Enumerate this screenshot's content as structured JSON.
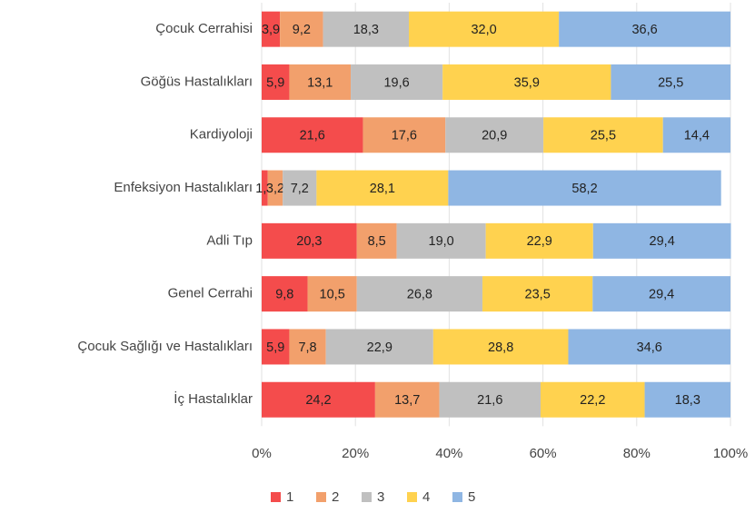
{
  "chart_data": {
    "type": "stacked_barh",
    "categories": [
      "Çocuk Cerrahisi",
      "Göğüs Hastalıkları",
      "Kardiyoloji",
      "Enfeksiyon Hastalıkları",
      "Adli Tıp",
      "Genel Cerrahi",
      "Çocuk Sağlığı ve Hastalıkları",
      "İç Hastalıklar"
    ],
    "series": [
      {
        "name": "1",
        "color": "#f44c4c",
        "values": [
          3.9,
          5.9,
          21.6,
          1.3,
          20.3,
          9.8,
          5.9,
          24.2
        ],
        "value_labels": [
          "3,9",
          "5,9",
          "21,6",
          "1,3",
          "20,3",
          "9,8",
          "5,9",
          "24,2"
        ]
      },
      {
        "name": "2",
        "color": "#f2a06c",
        "values": [
          9.2,
          13.1,
          17.6,
          3.2,
          8.5,
          10.5,
          7.8,
          13.7
        ],
        "value_labels": [
          "9,2",
          "13,1",
          "17,6",
          "3,2",
          "8,5",
          "10,5",
          "7,8",
          "13,7"
        ]
      },
      {
        "name": "3",
        "color": "#c0c0c0",
        "values": [
          18.3,
          19.6,
          20.9,
          7.2,
          19.0,
          26.8,
          22.9,
          21.6
        ],
        "value_labels": [
          "18,3",
          "19,6",
          "20,9",
          "7,2",
          "19,0",
          "26,8",
          "22,9",
          "21,6"
        ]
      },
      {
        "name": "4",
        "color": "#ffd24f",
        "values": [
          32.0,
          35.9,
          25.5,
          28.1,
          22.9,
          23.5,
          28.8,
          22.2
        ],
        "value_labels": [
          "32,0",
          "35,9",
          "25,5",
          "28,1",
          "22,9",
          "23,5",
          "28,8",
          "22,2"
        ]
      },
      {
        "name": "5",
        "color": "#8fb6e3",
        "values": [
          36.6,
          25.5,
          14.4,
          58.2,
          29.4,
          29.4,
          34.6,
          18.3
        ],
        "value_labels": [
          "36,6",
          "25,5",
          "14,4",
          "58,2",
          "29,4",
          "29,4",
          "34,6",
          "18,3"
        ]
      }
    ],
    "xlim": [
      0,
      100
    ],
    "xticks": [
      {
        "value": 0,
        "label": "0%"
      },
      {
        "value": 20,
        "label": "20%"
      },
      {
        "value": 40,
        "label": "40%"
      },
      {
        "value": 60,
        "label": "60%"
      },
      {
        "value": 80,
        "label": "80%"
      },
      {
        "value": 100,
        "label": "100%"
      }
    ],
    "grid": true,
    "legend": "bottom"
  }
}
